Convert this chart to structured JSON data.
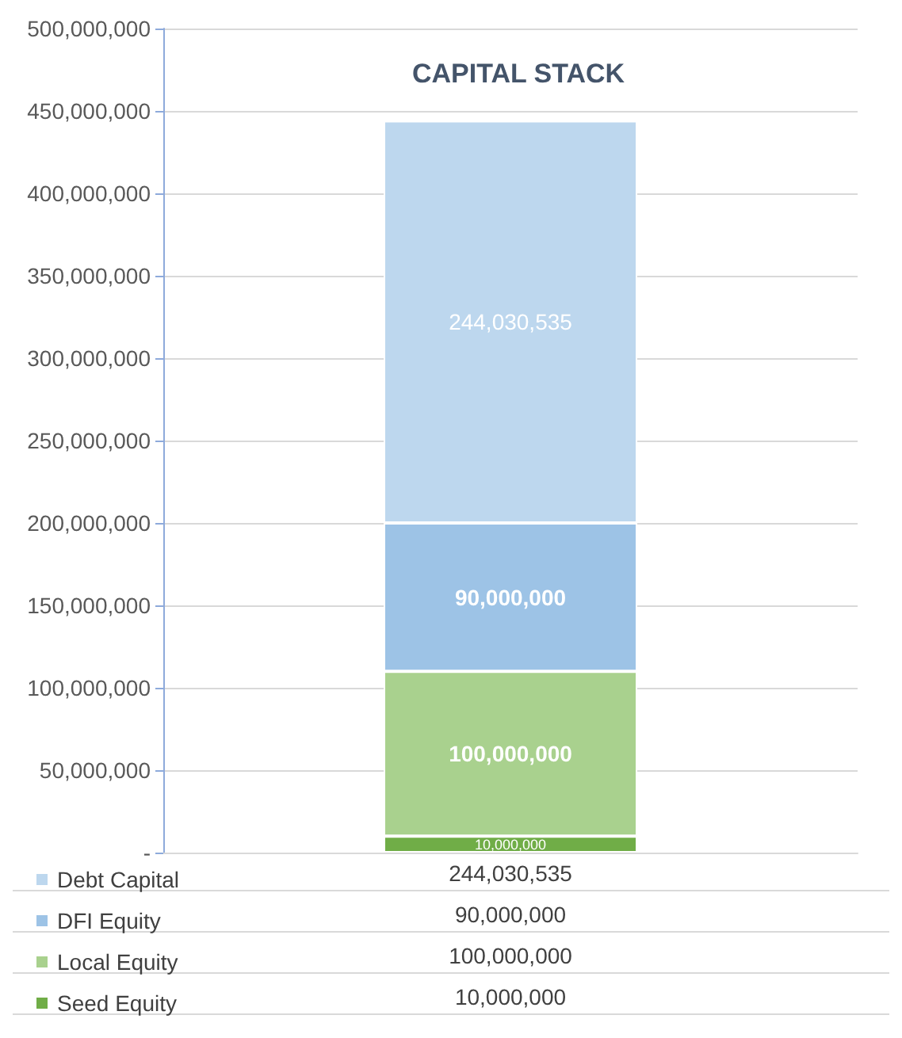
{
  "chart_data": {
    "type": "bar",
    "title": "CAPITAL STACK",
    "stacked": true,
    "categories": [
      null
    ],
    "series": [
      {
        "name": "Seed Equity",
        "color": "#70ad47",
        "values": [
          10000000
        ],
        "value_labels": [
          "10,000,000"
        ]
      },
      {
        "name": "Local Equity",
        "color": "#a9d18e",
        "values": [
          100000000
        ],
        "value_labels": [
          "100,000,000"
        ]
      },
      {
        "name": "DFI Equity",
        "color": "#9dc3e6",
        "values": [
          90000000
        ],
        "value_labels": [
          "90,000,000"
        ]
      },
      {
        "name": "Debt Capital",
        "color": "#bdd7ee",
        "values": [
          244030535
        ],
        "value_labels": [
          "244,030,535"
        ]
      }
    ],
    "ylim": [
      0,
      500000000
    ],
    "yticks": [
      {
        "value": 0,
        "label": "-"
      },
      {
        "value": 50000000,
        "label": "50,000,000"
      },
      {
        "value": 100000000,
        "label": "100,000,000"
      },
      {
        "value": 150000000,
        "label": "150,000,000"
      },
      {
        "value": 200000000,
        "label": "200,000,000"
      },
      {
        "value": 250000000,
        "label": "250,000,000"
      },
      {
        "value": 300000000,
        "label": "300,000,000"
      },
      {
        "value": 350000000,
        "label": "350,000,000"
      },
      {
        "value": 400000000,
        "label": "400,000,000"
      },
      {
        "value": 450000000,
        "label": "450,000,000"
      },
      {
        "value": 500000000,
        "label": "500,000,000"
      }
    ],
    "grid": "y",
    "legend": "bottom"
  }
}
